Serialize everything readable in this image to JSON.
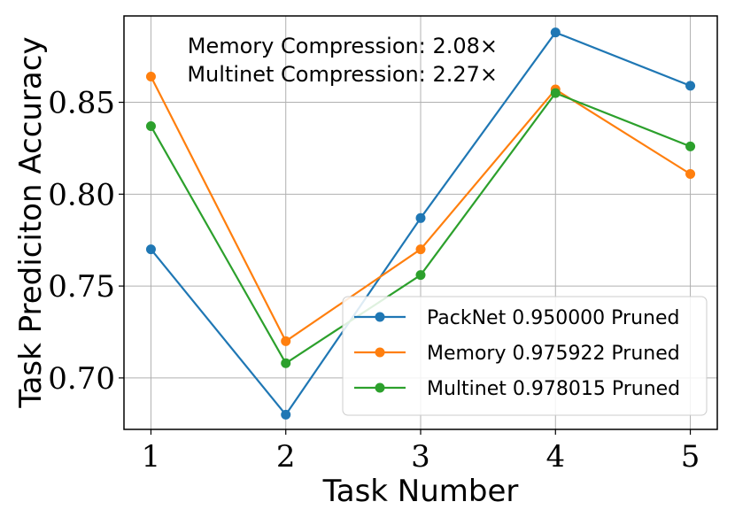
{
  "chart_data": {
    "type": "line",
    "xlabel": "Task Number",
    "ylabel": "Task Prediciton Accuracy",
    "x": [
      1,
      2,
      3,
      4,
      5
    ],
    "x_tick_labels": [
      "1",
      "2",
      "3",
      "4",
      "5"
    ],
    "xlim": [
      0.8,
      5.2
    ],
    "ylim": [
      0.672,
      0.897
    ],
    "y_ticks": [
      0.7,
      0.75,
      0.8,
      0.85
    ],
    "y_tick_labels": [
      "0.70",
      "0.75",
      "0.80",
      "0.85"
    ],
    "grid": true,
    "legend_position": "lower-right",
    "annotations": [
      "Memory Compression: 2.08×",
      "Multinet Compression: 2.27×"
    ],
    "series": [
      {
        "name": "PackNet 0.950000 Pruned",
        "color": "#1f77b4",
        "values": [
          0.77,
          0.68,
          0.787,
          0.888,
          0.859
        ]
      },
      {
        "name": "Memory 0.975922 Pruned",
        "color": "#ff7f0e",
        "values": [
          0.864,
          0.72,
          0.77,
          0.857,
          0.811
        ]
      },
      {
        "name": "Multinet 0.978015 Pruned",
        "color": "#2ca02c",
        "values": [
          0.837,
          0.708,
          0.756,
          0.855,
          0.826
        ]
      }
    ]
  }
}
